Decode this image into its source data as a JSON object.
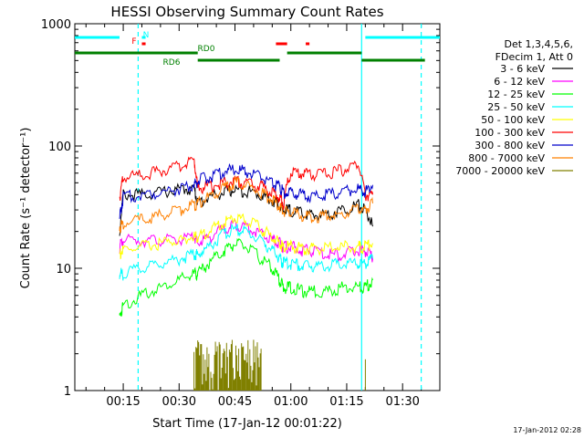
{
  "chart_data": {
    "type": "line",
    "title": "HESSI Observing Summary Count Rates",
    "xlabel": "Start Time (17-Jan-12 00:01:22)",
    "ylabel": "Count Rate (s⁻¹ detector⁻¹)",
    "y_scale": "log",
    "xlim": [
      "00:02",
      "01:40"
    ],
    "ylim": [
      1,
      1000
    ],
    "x_ticks": [
      "00:15",
      "00:30",
      "00:45",
      "01:00",
      "01:15",
      "01:30"
    ],
    "y_ticks": [
      "1",
      "10",
      "100",
      "1000"
    ],
    "timestamp": "17-Jan-2012 02:28",
    "legend": {
      "placement": "right",
      "header": [
        "Det 1,3,4,5,6,",
        "FDecim 1, Att 0"
      ]
    },
    "series": [
      {
        "name": "3 - 6 keV",
        "color": "#000000",
        "x": [
          "00:14",
          "00:15",
          "00:20",
          "00:25",
          "00:30",
          "00:34",
          "00:35",
          "00:38",
          "00:42",
          "00:45",
          "00:48",
          "00:52",
          "00:55",
          "00:57",
          "00:58",
          "01:00",
          "01:03",
          "01:06",
          "01:10",
          "01:14",
          "01:18",
          "01:20",
          "01:22"
        ],
        "y": [
          18,
          40,
          40,
          42,
          44,
          45,
          34,
          38,
          42,
          44,
          43,
          40,
          36,
          33,
          30,
          30,
          28,
          27,
          28,
          30,
          33,
          30,
          22
        ]
      },
      {
        "name": "6 - 12 keV",
        "color": "#ff00ff",
        "x": [
          "00:14",
          "00:15",
          "00:20",
          "00:25",
          "00:30",
          "00:34",
          "00:35",
          "00:38",
          "00:42",
          "00:45",
          "00:48",
          "00:52",
          "00:55",
          "00:57",
          "00:58",
          "01:00",
          "01:03",
          "01:06",
          "01:10",
          "01:14",
          "01:18",
          "01:20",
          "01:22"
        ],
        "y": [
          15,
          17,
          17,
          17,
          17,
          18,
          16,
          18,
          21,
          23,
          22,
          19,
          17,
          16,
          15,
          15,
          14,
          14,
          13,
          13,
          14,
          14,
          12
        ]
      },
      {
        "name": "12 - 25 keV",
        "color": "#00ff00",
        "x": [
          "00:14",
          "00:15",
          "00:20",
          "00:25",
          "00:30",
          "00:34",
          "00:35",
          "00:38",
          "00:42",
          "00:45",
          "00:48",
          "00:52",
          "00:55",
          "00:57",
          "00:58",
          "01:00",
          "01:03",
          "01:06",
          "01:10",
          "01:14",
          "01:18",
          "01:20",
          "01:22"
        ],
        "y": [
          4,
          5,
          6,
          7,
          8,
          9,
          9,
          11,
          14,
          16,
          15,
          12,
          10,
          8,
          7,
          7,
          6.5,
          6.5,
          6.5,
          7,
          7,
          7,
          8
        ]
      },
      {
        "name": "25 - 50 keV",
        "color": "#00ffff",
        "x": [
          "00:14",
          "00:15",
          "00:20",
          "00:25",
          "00:30",
          "00:34",
          "00:35",
          "00:38",
          "00:42",
          "00:45",
          "00:48",
          "00:52",
          "00:55",
          "00:57",
          "00:58",
          "01:00",
          "01:03",
          "01:06",
          "01:10",
          "01:14",
          "01:18",
          "01:20",
          "01:22"
        ],
        "y": [
          9,
          9,
          10,
          11,
          12,
          13,
          13,
          15,
          19,
          21,
          20,
          17,
          14,
          12,
          11,
          11,
          10.5,
          10.5,
          10.5,
          11,
          11,
          11,
          12
        ]
      },
      {
        "name": "50 - 100 keV",
        "color": "#ffff00",
        "x": [
          "00:14",
          "00:15",
          "00:20",
          "00:25",
          "00:30",
          "00:34",
          "00:35",
          "00:38",
          "00:42",
          "00:45",
          "00:48",
          "00:52",
          "00:55",
          "00:57",
          "00:58",
          "01:00",
          "01:03",
          "01:06",
          "01:10",
          "01:14",
          "01:18",
          "01:20",
          "01:22"
        ],
        "y": [
          13,
          14,
          15,
          16,
          17,
          18,
          18,
          20,
          24,
          26,
          25,
          21,
          18,
          16,
          15,
          15,
          14.5,
          14.5,
          14.5,
          15,
          15,
          15,
          16
        ]
      },
      {
        "name": "100 - 300 keV",
        "color": "#ff0000",
        "x": [
          "00:14",
          "00:15",
          "00:20",
          "00:25",
          "00:30",
          "00:34",
          "00:35",
          "00:38",
          "00:42",
          "00:45",
          "00:48",
          "00:52",
          "00:55",
          "00:57",
          "00:58",
          "01:00",
          "01:03",
          "01:06",
          "01:10",
          "01:14",
          "01:18",
          "01:20",
          "01:22"
        ],
        "y": [
          38,
          55,
          58,
          62,
          68,
          76,
          45,
          47,
          50,
          52,
          50,
          47,
          42,
          38,
          34,
          62,
          60,
          58,
          60,
          64,
          72,
          40,
          40
        ]
      },
      {
        "name": "300 - 800 keV",
        "color": "#0000cc",
        "x": [
          "00:14",
          "00:15",
          "00:20",
          "00:25",
          "00:30",
          "00:34",
          "00:35",
          "00:38",
          "00:42",
          "00:45",
          "00:48",
          "00:52",
          "00:55",
          "00:57",
          "00:58",
          "01:00",
          "01:03",
          "01:06",
          "01:10",
          "01:14",
          "01:18",
          "01:20",
          "01:22"
        ],
        "y": [
          25,
          38,
          40,
          42,
          45,
          48,
          52,
          56,
          62,
          64,
          62,
          56,
          50,
          46,
          42,
          42,
          40,
          39,
          40,
          42,
          45,
          42,
          48
        ]
      },
      {
        "name": "800 - 7000 keV",
        "color": "#ff8000",
        "x": [
          "00:14",
          "00:15",
          "00:20",
          "00:25",
          "00:30",
          "00:34",
          "00:35",
          "00:38",
          "00:42",
          "00:45",
          "00:48",
          "00:52",
          "00:55",
          "00:57",
          "00:58",
          "01:00",
          "01:03",
          "01:06",
          "01:10",
          "01:14",
          "01:18",
          "01:20",
          "01:22"
        ],
        "y": [
          22,
          23,
          25,
          27,
          30,
          33,
          34,
          38,
          45,
          50,
          48,
          42,
          36,
          32,
          29,
          29,
          27,
          26,
          27,
          28,
          30,
          30,
          34
        ]
      },
      {
        "name": "7000 - 20000 keV",
        "color": "#808000",
        "x": [
          "00:33",
          "00:34",
          "00:36",
          "00:38",
          "00:40",
          "00:42",
          "00:44",
          "00:46",
          "00:48",
          "00:50",
          "00:52",
          "00:53",
          "01:20"
        ],
        "y": [
          1,
          2,
          2.4,
          2,
          1.8,
          2.2,
          2.4,
          2.2,
          2,
          2.6,
          2.2,
          1,
          1.8
        ]
      }
    ],
    "annotations": {
      "intervals": [
        {
          "label": "N",
          "color": "#00ffff",
          "segments": [
            [
              "00:02",
              "00:14"
            ],
            [
              "00:20",
              "00:21"
            ],
            [
              "01:20",
              "01:40"
            ]
          ]
        },
        {
          "label": "F",
          "color": "#ff0000",
          "segments": [
            [
              "00:20",
              "00:21"
            ],
            [
              "00:56",
              "00:59"
            ],
            [
              "01:04",
              "01:05"
            ]
          ]
        },
        {
          "label": "RD0",
          "color": "#008000",
          "segments": [
            [
              "00:02",
              "00:35"
            ],
            [
              "00:59",
              "01:19"
            ]
          ]
        },
        {
          "label": "RD6",
          "color": "#008000",
          "segments": [
            [
              "00:35",
              "00:57"
            ],
            [
              "01:19",
              "01:36"
            ]
          ]
        }
      ],
      "vlines": [
        {
          "x": "00:19",
          "color": "#00ffff",
          "style": "dashed"
        },
        {
          "x": "01:19",
          "color": "#00ffff",
          "style": "solid"
        },
        {
          "x": "01:35",
          "color": "#00ffff",
          "style": "dashed"
        }
      ]
    }
  }
}
